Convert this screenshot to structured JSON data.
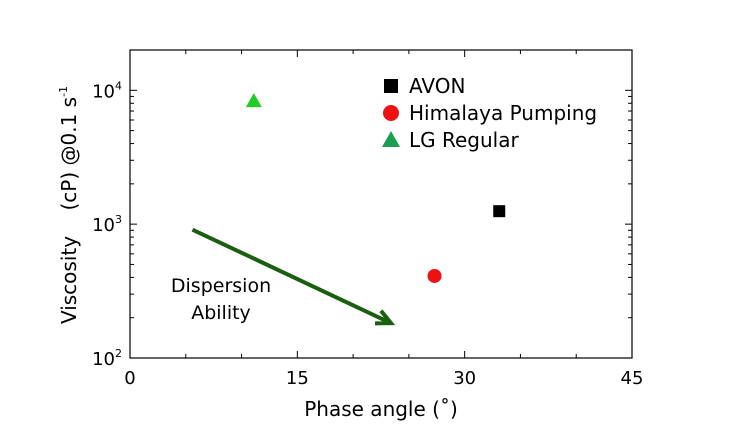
{
  "chart_data": {
    "type": "scatter",
    "title": "",
    "xlabel": "Phase angle (˚)",
    "ylabel": "Viscosity    (cP) @0.1 s",
    "ylabel_superscript": "-1",
    "xlim": [
      0,
      45
    ],
    "ylim": [
      100,
      20000
    ],
    "yscale": "log",
    "grid": false,
    "legend_placement": "top-right",
    "xticks": [
      0,
      15,
      30,
      45
    ],
    "xtick_labels": [
      "0",
      "15",
      "30",
      "45"
    ],
    "yticks": [
      100,
      1000,
      10000
    ],
    "ytick_labels": [
      {
        "base": "10",
        "exp": "2"
      },
      {
        "base": "10",
        "exp": "3"
      },
      {
        "base": "10",
        "exp": "4"
      }
    ],
    "series": [
      {
        "name": "AVON",
        "marker": "square",
        "color": "#000000",
        "x": [
          33.1
        ],
        "y": [
          1250
        ]
      },
      {
        "name": "Himalaya Pumping",
        "marker": "circle",
        "color": "#ee1111",
        "x": [
          27.3
        ],
        "y": [
          410
        ]
      },
      {
        "name": "LG Regular",
        "marker": "triangle",
        "color": "#22cc22",
        "legend_color": "#1aa050",
        "x": [
          11.1
        ],
        "y": [
          8300
        ]
      }
    ],
    "annotations": [
      {
        "text_lines": [
          "Dispersion",
          "Ability"
        ],
        "arrow_from": [
          5.6,
          910
        ],
        "arrow_to": [
          23.4,
          182
        ],
        "arrow_color": "#1a5e10"
      }
    ]
  }
}
